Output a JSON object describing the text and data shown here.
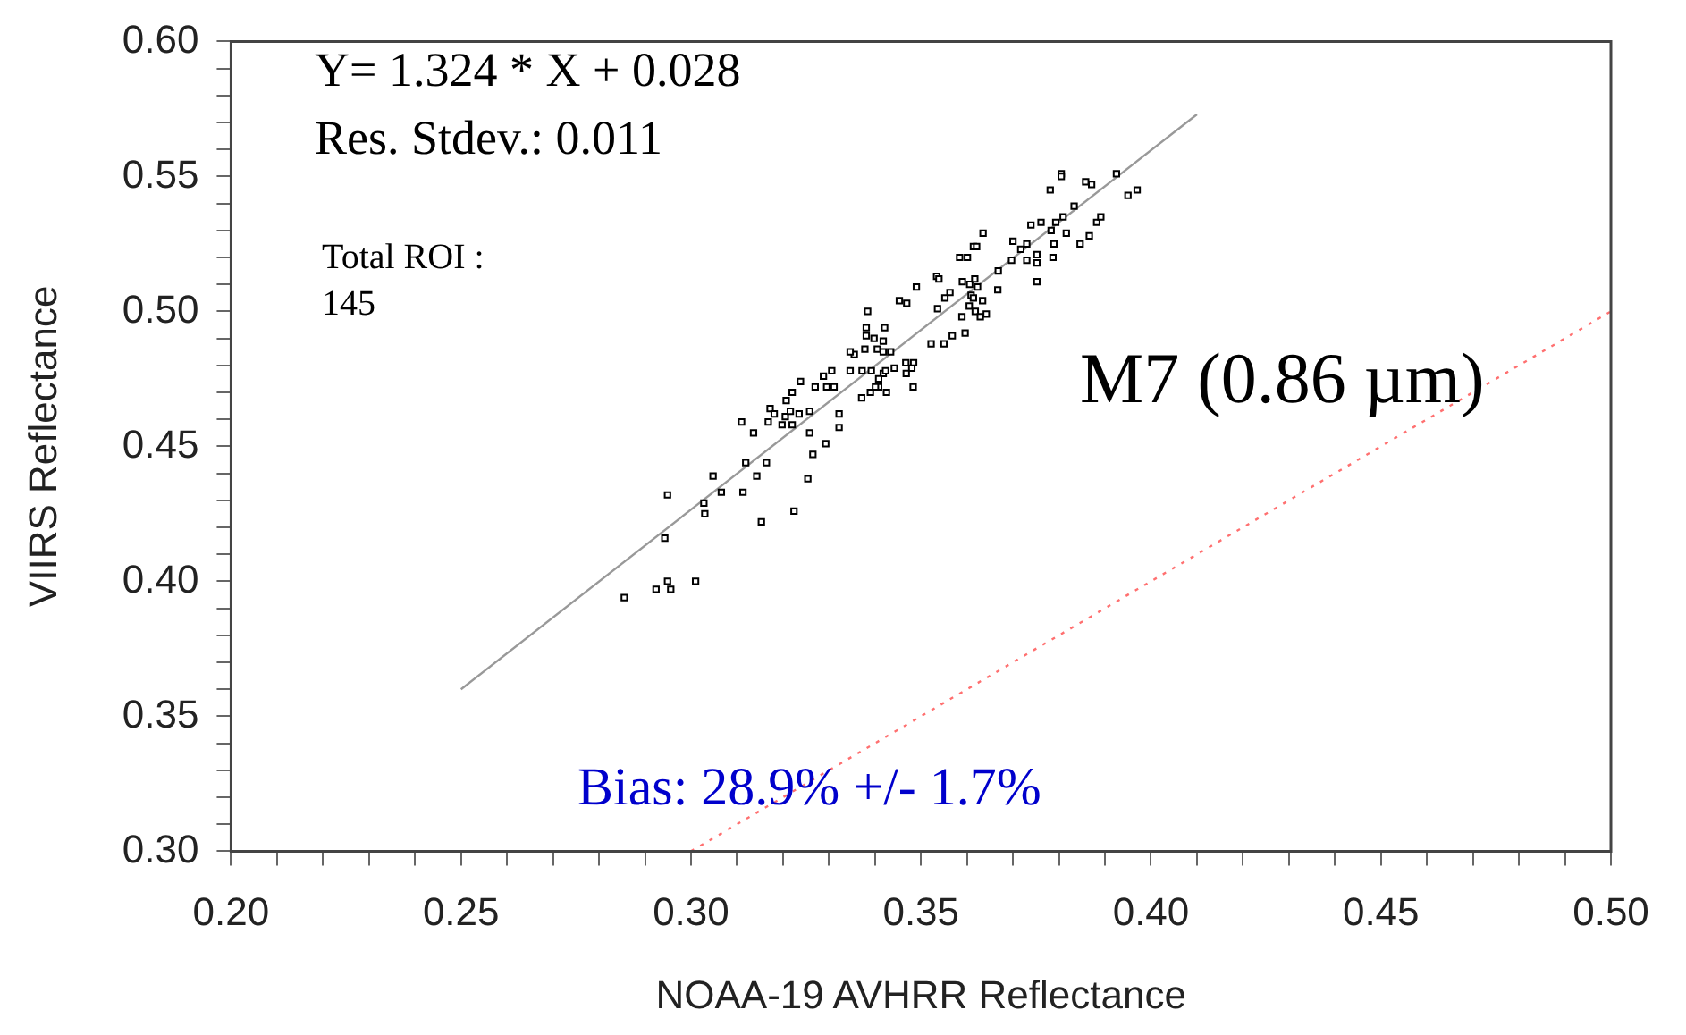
{
  "chart_data": {
    "type": "scatter",
    "xlabel": "NOAA-19 AVHRR Reflectance",
    "ylabel": "VIIRS Reflectance",
    "xlim": [
      0.2,
      0.5
    ],
    "ylim": [
      0.3,
      0.6
    ],
    "xticks": [
      {
        "value": 0.2,
        "label": "0.20"
      },
      {
        "value": 0.21,
        "label": null
      },
      {
        "value": 0.22,
        "label": null
      },
      {
        "value": 0.23,
        "label": null
      },
      {
        "value": 0.24,
        "label": null
      },
      0.25,
      {
        "value": 0.26,
        "label": null
      },
      {
        "value": 0.27,
        "label": null
      },
      {
        "value": 0.28,
        "label": null
      },
      {
        "value": 0.29,
        "label": null
      },
      {
        "value": 0.3,
        "label": "0.30"
      },
      {
        "value": 0.31,
        "label": null
      },
      {
        "value": 0.32,
        "label": null
      },
      {
        "value": 0.33,
        "label": null
      },
      {
        "value": 0.34,
        "label": null
      },
      0.35,
      {
        "value": 0.36,
        "label": null
      },
      {
        "value": 0.37,
        "label": null
      },
      {
        "value": 0.38,
        "label": null
      },
      {
        "value": 0.39,
        "label": null
      },
      {
        "value": 0.4,
        "label": "0.40"
      },
      {
        "value": 0.41,
        "label": null
      },
      {
        "value": 0.42,
        "label": null
      },
      {
        "value": 0.43,
        "label": null
      },
      {
        "value": 0.44,
        "label": null
      },
      0.45,
      {
        "value": 0.46,
        "label": null
      },
      {
        "value": 0.47,
        "label": null
      },
      {
        "value": 0.48,
        "label": null
      },
      {
        "value": 0.49,
        "label": null
      },
      {
        "value": 0.5,
        "label": "0.50"
      }
    ],
    "yticks": [
      {
        "value": 0.3,
        "label": "0.30"
      },
      {
        "value": 0.31,
        "label": null
      },
      {
        "value": 0.32,
        "label": null
      },
      {
        "value": 0.33,
        "label": null
      },
      {
        "value": 0.34,
        "label": null
      },
      0.35,
      {
        "value": 0.36,
        "label": null
      },
      {
        "value": 0.37,
        "label": null
      },
      {
        "value": 0.38,
        "label": null
      },
      {
        "value": 0.39,
        "label": null
      },
      {
        "value": 0.4,
        "label": "0.40"
      },
      {
        "value": 0.41,
        "label": null
      },
      {
        "value": 0.42,
        "label": null
      },
      {
        "value": 0.43,
        "label": null
      },
      {
        "value": 0.44,
        "label": null
      },
      0.45,
      {
        "value": 0.46,
        "label": null
      },
      {
        "value": 0.47,
        "label": null
      },
      {
        "value": 0.48,
        "label": null
      },
      {
        "value": 0.49,
        "label": null
      },
      {
        "value": 0.5,
        "label": "0.50"
      },
      {
        "value": 0.51,
        "label": null
      },
      {
        "value": 0.52,
        "label": null
      },
      {
        "value": 0.53,
        "label": null
      },
      {
        "value": 0.54,
        "label": null
      },
      0.55,
      {
        "value": 0.56,
        "label": null
      },
      {
        "value": 0.57,
        "label": null
      },
      {
        "value": 0.58,
        "label": null
      },
      {
        "value": 0.59,
        "label": null
      },
      {
        "value": 0.6,
        "label": "0.60"
      }
    ],
    "grid": false,
    "legend": false,
    "annotations": [
      "Y= 1.324 * X + 0.028",
      "Res. Stdev.: 0.011",
      "Total ROI :",
      "145",
      "M7 (0.86 µm)",
      "Bias: 28.9% +/- 1.7%"
    ],
    "series": [
      {
        "marker": "square",
        "color": "#000000",
        "x": [
          0.2855,
          0.2924,
          0.2949,
          0.2956,
          0.301,
          0.2943,
          0.2949,
          0.303,
          0.3028,
          0.3066,
          0.3048,
          0.3113,
          0.3153,
          0.3143,
          0.3119,
          0.3164,
          0.3224,
          0.3254,
          0.3265,
          0.3293,
          0.3258,
          0.3136,
          0.311,
          0.3168,
          0.3198,
          0.322,
          0.3172,
          0.3181,
          0.3205,
          0.3216,
          0.3235,
          0.3258,
          0.3207,
          0.322,
          0.3238,
          0.327,
          0.3288,
          0.3306,
          0.3295,
          0.3311,
          0.3322,
          0.3322,
          0.3384,
          0.3381,
          0.3381,
          0.3421,
          0.3398,
          0.3418,
          0.3418,
          0.3434,
          0.3378,
          0.3355,
          0.3346,
          0.3405,
          0.3372,
          0.3346,
          0.3392,
          0.3418,
          0.3423,
          0.3408,
          0.3425,
          0.3408,
          0.3467,
          0.3484,
          0.348,
          0.3442,
          0.3468,
          0.3483,
          0.3371,
          0.339,
          0.3401,
          0.3453,
          0.3469,
          0.349,
          0.3536,
          0.3563,
          0.3552,
          0.3534,
          0.3539,
          0.3522,
          0.355,
          0.3568,
          0.3589,
          0.3596,
          0.359,
          0.3606,
          0.3617,
          0.3623,
          0.3609,
          0.3605,
          0.3614,
          0.3634,
          0.3618,
          0.3629,
          0.3642,
          0.3584,
          0.3601,
          0.3614,
          0.3621,
          0.3635,
          0.3668,
          0.3667,
          0.37,
          0.3717,
          0.3697,
          0.373,
          0.3752,
          0.3752,
          0.3787,
          0.373,
          0.3739,
          0.3761,
          0.3789,
          0.3783,
          0.3793,
          0.3752,
          0.3816,
          0.3809,
          0.3833,
          0.3846,
          0.3866,
          0.3882,
          0.3891,
          0.3781,
          0.3805,
          0.3805,
          0.3858,
          0.3871,
          0.3925,
          0.395,
          0.397
        ],
        "values": [
          0.394,
          0.397,
          0.4,
          0.397,
          0.4,
          0.416,
          0.432,
          0.425,
          0.429,
          0.433,
          0.439,
          0.433,
          0.422,
          0.439,
          0.444,
          0.444,
          0.426,
          0.438,
          0.447,
          0.451,
          0.455,
          0.455,
          0.459,
          0.459,
          0.458,
          0.458,
          0.464,
          0.462,
          0.461,
          0.463,
          0.462,
          0.463,
          0.467,
          0.47,
          0.474,
          0.472,
          0.476,
          0.478,
          0.472,
          0.472,
          0.462,
          0.457,
          0.5,
          0.494,
          0.491,
          0.494,
          0.49,
          0.489,
          0.485,
          0.485,
          0.486,
          0.484,
          0.485,
          0.486,
          0.478,
          0.478,
          0.478,
          0.477,
          0.478,
          0.475,
          0.47,
          0.472,
          0.481,
          0.481,
          0.479,
          0.479,
          0.477,
          0.472,
          0.468,
          0.47,
          0.472,
          0.504,
          0.503,
          0.509,
          0.501,
          0.507,
          0.505,
          0.513,
          0.512,
          0.488,
          0.488,
          0.491,
          0.498,
          0.492,
          0.511,
          0.51,
          0.512,
          0.509,
          0.506,
          0.502,
          0.505,
          0.504,
          0.5,
          0.498,
          0.499,
          0.52,
          0.52,
          0.524,
          0.524,
          0.529,
          0.515,
          0.508,
          0.526,
          0.523,
          0.519,
          0.519,
          0.521,
          0.518,
          0.52,
          0.525,
          0.532,
          0.533,
          0.525,
          0.53,
          0.533,
          0.511,
          0.529,
          0.535,
          0.539,
          0.525,
          0.528,
          0.533,
          0.535,
          0.545,
          0.551,
          0.55,
          0.548,
          0.547,
          0.551,
          0.543,
          0.545
        ]
      },
      {
        "type": "line",
        "color": "#999999",
        "line_style": "solid",
        "x": [
          0.25,
          0.41
        ],
        "values": [
          0.36,
          0.573
        ]
      },
      {
        "type": "line",
        "color": "#ff7070",
        "line_style": "dotted",
        "x": [
          0.3,
          0.5
        ],
        "values": [
          0.3,
          0.5
        ]
      }
    ]
  }
}
